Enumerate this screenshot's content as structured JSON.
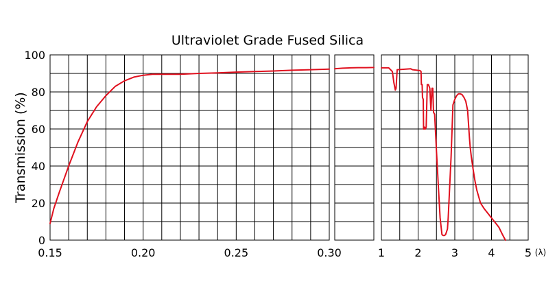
{
  "chart_data": {
    "type": "line",
    "title": "Ultraviolet Grade Fused Silica",
    "ylabel": "Transmission (%)",
    "ylim": [
      0,
      100
    ],
    "yticks": [
      "0",
      "20",
      "40",
      "60",
      "80",
      "100"
    ],
    "grid": true,
    "series_color": "#e0101e",
    "panels": [
      {
        "xlim": [
          0.15,
          0.3
        ],
        "xticks": [
          {
            "value": 0.15,
            "label": "0.15"
          },
          {
            "value": 0.2,
            "label": "0.20"
          },
          {
            "value": 0.25,
            "label": "0.25"
          },
          {
            "value": 0.3,
            "label": "0.30"
          }
        ],
        "x": [
          0.15,
          0.152,
          0.155,
          0.16,
          0.165,
          0.17,
          0.175,
          0.18,
          0.185,
          0.19,
          0.195,
          0.2,
          0.205,
          0.21,
          0.22,
          0.23,
          0.24,
          0.25,
          0.26,
          0.27,
          0.28,
          0.29,
          0.3
        ],
        "y": [
          9,
          17,
          26,
          40,
          53,
          64,
          72,
          78,
          83,
          86,
          88,
          89,
          89.5,
          89.5,
          89.5,
          90,
          90.3,
          90.7,
          91,
          91.3,
          91.7,
          92,
          92.3
        ]
      },
      {
        "xlim": [
          0.3,
          0.4
        ],
        "xticks": [],
        "x": [
          0.3,
          0.32,
          0.34,
          0.36,
          0.38,
          0.4
        ],
        "y": [
          92.5,
          92.8,
          93,
          93.1,
          93.1,
          93.2
        ]
      },
      {
        "xlim": [
          1,
          5
        ],
        "xticks": [
          {
            "value": 1,
            "label": "1"
          },
          {
            "value": 2,
            "label": "2"
          },
          {
            "value": 3,
            "label": "3"
          },
          {
            "value": 4,
            "label": "4"
          },
          {
            "value": 5,
            "label": "5"
          }
        ],
        "x_unit_label": "(λ)",
        "x": [
          1.0,
          1.2,
          1.3,
          1.34,
          1.38,
          1.4,
          1.43,
          1.8,
          1.85,
          2.05,
          2.08,
          2.09,
          2.11,
          2.12,
          2.14,
          2.15,
          2.17,
          2.18,
          2.2,
          2.22,
          2.25,
          2.28,
          2.32,
          2.35,
          2.38,
          2.4,
          2.42,
          2.45,
          2.5,
          2.55,
          2.6,
          2.65,
          2.68,
          2.72,
          2.75,
          2.8,
          2.82,
          2.9,
          2.95,
          3.0,
          3.05,
          3.1,
          3.15,
          3.2,
          3.25,
          3.3,
          3.35,
          3.4,
          3.42,
          3.45,
          3.5,
          3.55,
          3.6,
          3.7,
          3.8,
          4.0,
          4.2,
          4.3,
          4.38
        ],
        "y": [
          93,
          93,
          91,
          85,
          81,
          82,
          92,
          92.5,
          92,
          91.5,
          91,
          84,
          84,
          77,
          76,
          60,
          60,
          61,
          60,
          61,
          84,
          84,
          82,
          70,
          82,
          82,
          69,
          68,
          48,
          30,
          12,
          3,
          2.5,
          2.5,
          3,
          6,
          12,
          45,
          73,
          76,
          78,
          79,
          79,
          78.5,
          77,
          75,
          70,
          55,
          50,
          45,
          38,
          32,
          27,
          20,
          17,
          12,
          7,
          3,
          0
        ]
      }
    ]
  }
}
